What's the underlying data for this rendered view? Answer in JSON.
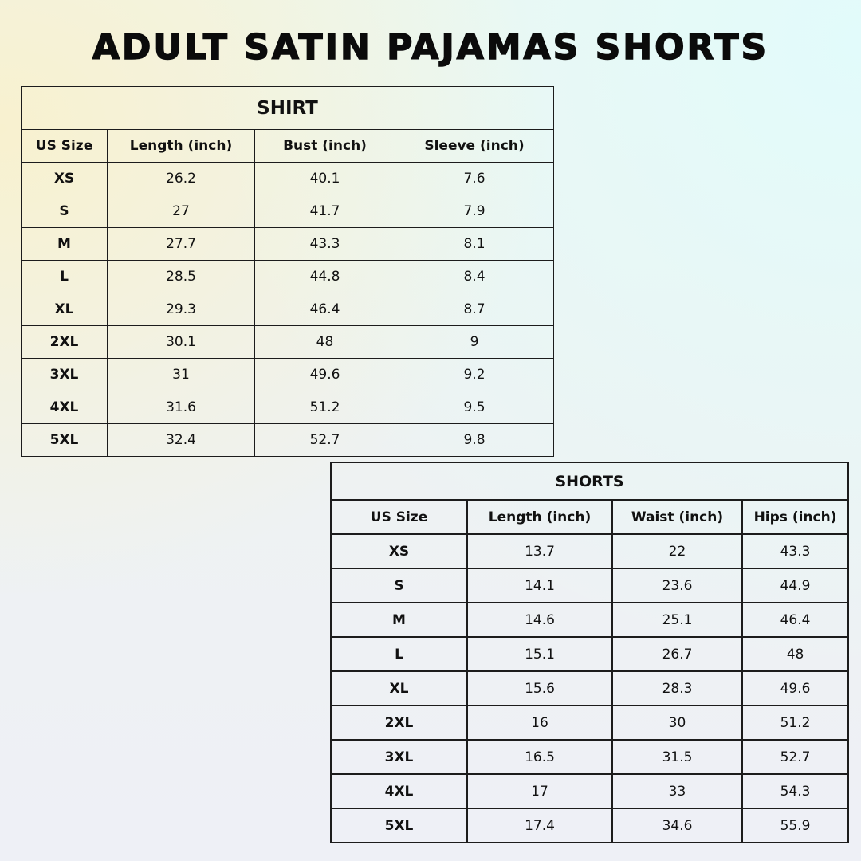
{
  "title": "ADULT SATIN PAJAMAS SHORTS",
  "shirt": {
    "caption": "SHIRT",
    "headers": [
      "US Size",
      "Length (inch)",
      "Bust (inch)",
      "Sleeve (inch)"
    ],
    "rows": [
      [
        "XS",
        "26.2",
        "40.1",
        "7.6"
      ],
      [
        "S",
        "27",
        "41.7",
        "7.9"
      ],
      [
        "M",
        "27.7",
        "43.3",
        "8.1"
      ],
      [
        "L",
        "28.5",
        "44.8",
        "8.4"
      ],
      [
        "XL",
        "29.3",
        "46.4",
        "8.7"
      ],
      [
        "2XL",
        "30.1",
        "48",
        "9"
      ],
      [
        "3XL",
        "31",
        "49.6",
        "9.2"
      ],
      [
        "4XL",
        "31.6",
        "51.2",
        "9.5"
      ],
      [
        "5XL",
        "32.4",
        "52.7",
        "9.8"
      ]
    ]
  },
  "shorts": {
    "caption": "SHORTS",
    "headers": [
      "US Size",
      "Length (inch)",
      "Waist (inch)",
      "Hips (inch)"
    ],
    "rows": [
      [
        "XS",
        "13.7",
        "22",
        "43.3"
      ],
      [
        "S",
        "14.1",
        "23.6",
        "44.9"
      ],
      [
        "M",
        "14.6",
        "25.1",
        "46.4"
      ],
      [
        "L",
        "15.1",
        "26.7",
        "48"
      ],
      [
        "XL",
        "15.6",
        "28.3",
        "49.6"
      ],
      [
        "2XL",
        "16",
        "30",
        "51.2"
      ],
      [
        "3XL",
        "16.5",
        "31.5",
        "52.7"
      ],
      [
        "4XL",
        "17",
        "33",
        "54.3"
      ],
      [
        "5XL",
        "17.4",
        "34.6",
        "55.9"
      ]
    ]
  }
}
